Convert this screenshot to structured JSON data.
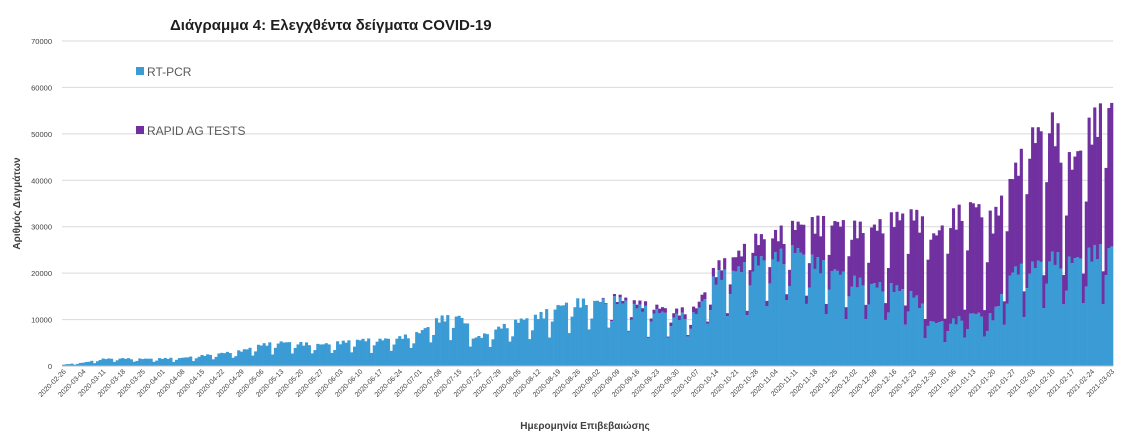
{
  "chart_data": {
    "type": "bar",
    "stacked": true,
    "title": "Διάγραμμα 4: Ελεγχθέντα δείγματα COVID-19",
    "xlabel": "Ημερομηνία Επιβεβαιώσης",
    "ylabel": "Αριθμός Δειγμάτων",
    "ylim": [
      0,
      70000
    ],
    "yticks": [
      "0",
      "10000",
      "20000",
      "30000",
      "40000",
      "50000",
      "60000",
      "70000"
    ],
    "grid": true,
    "legend_position": "top-left",
    "x_start": "2020-02-26",
    "x_end": "2021-03-03",
    "x_tick_labels": [
      "2020-02-26",
      "2020-03-04",
      "2020-03-11",
      "2020-03-18",
      "2020-03-25",
      "2020-04-01",
      "2020-04-08",
      "2020-04-15",
      "2020-04-22",
      "2020-04-29",
      "2020-05-06",
      "2020-05-13",
      "2020-05-20",
      "2020-05-27",
      "2020-06-03",
      "2020-06-10",
      "2020-06-17",
      "2020-06-24",
      "2020-07-01",
      "2020-07-08",
      "2020-07-15",
      "2020-07-22",
      "2020-07-29",
      "2020-08-05",
      "2020-08-12",
      "2020-08-19",
      "2020-08-26",
      "2020-09-02",
      "2020-09-09",
      "2020-09-16",
      "2020-09-23",
      "2020-09-30",
      "2020-10-07",
      "2020-10-14",
      "2020-10-21",
      "2020-10-28",
      "2020-11-04",
      "2020-11-11",
      "2020-11-18",
      "2020-11-25",
      "2020-12-02",
      "2020-12-09",
      "2020-12-16",
      "2020-12-23",
      "2020-12-30",
      "2021-01-06",
      "2021-01-13",
      "2021-01-20",
      "2021-01-27",
      "2021-02-03",
      "2021-02-10",
      "2021-02-17",
      "2021-02-24",
      "2021-03-03"
    ],
    "series": [
      {
        "name": "RT-PCR",
        "color": "#3a9bd5",
        "weekly_values": [
          300,
          700,
          1500,
          1600,
          1500,
          1600,
          1700,
          2200,
          2700,
          3200,
          4500,
          5000,
          4800,
          4500,
          5000,
          5500,
          5500,
          6000,
          7000,
          10000,
          10500,
          6000,
          8000,
          9500,
          10500,
          12500,
          13500,
          13500,
          14000,
          12500,
          11500,
          10500,
          11000,
          19000,
          20000,
          22000,
          23000,
          24500,
          22000,
          20000,
          18000,
          17000,
          16500,
          15000,
          9000,
          9500,
          11000,
          10500,
          20000,
          21000,
          23000,
          22000,
          24000,
          25000
        ]
      },
      {
        "name": "RAPID AG TESTS",
        "color": "#7030a0",
        "weekly_values": [
          0,
          0,
          0,
          0,
          0,
          0,
          0,
          0,
          0,
          0,
          0,
          0,
          0,
          0,
          0,
          0,
          0,
          0,
          0,
          0,
          0,
          0,
          0,
          0,
          0,
          0,
          0,
          0,
          500,
          800,
          900,
          1000,
          1200,
          1800,
          3000,
          4500,
          4500,
          5000,
          8000,
          10000,
          11000,
          12000,
          14500,
          17000,
          18000,
          22000,
          23000,
          20000,
          20000,
          27000,
          28000,
          20000,
          27000,
          30000
        ]
      }
    ]
  }
}
